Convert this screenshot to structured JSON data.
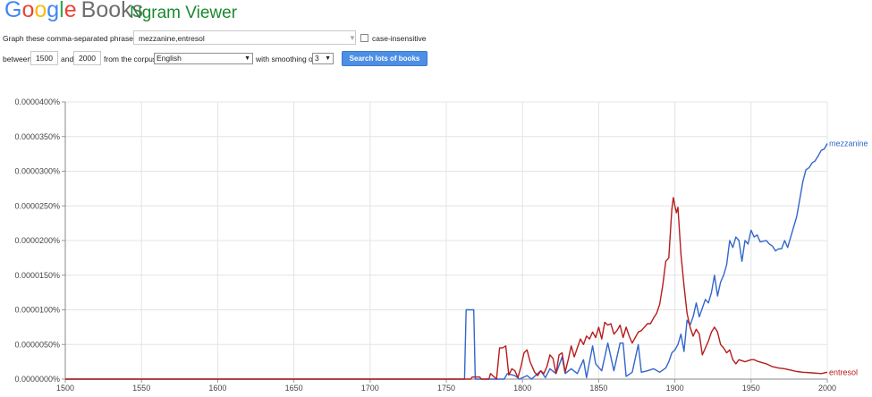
{
  "logo": {
    "letters": [
      "G",
      "o",
      "o",
      "g",
      "l",
      "e"
    ],
    "letter_colors": [
      "#4285f4",
      "#ea4335",
      "#fbbc05",
      "#4285f4",
      "#34a853",
      "#ea4335"
    ],
    "books": "Books"
  },
  "app_title": "Ngram Viewer",
  "form": {
    "phrases_label": "Graph these comma-separated phrases:",
    "phrases_value": "mezzanine,entresol",
    "case_insensitive_label": "case-insensitive",
    "between_label": "between",
    "year_start": "1500",
    "and_label": "and",
    "year_end": "2000",
    "corpus_label": "from the corpus",
    "corpus_value": "English",
    "smoothing_label": "with smoothing of",
    "smoothing_value": "3",
    "search_button": "Search lots of books"
  },
  "chart_data": {
    "type": "line",
    "xlim": [
      1500,
      2000
    ],
    "ylim": [
      0,
      4e-07
    ],
    "x_ticks": [
      "1500",
      "1550",
      "1600",
      "1650",
      "1700",
      "1750",
      "1800",
      "1850",
      "1900",
      "1950",
      "2000"
    ],
    "y_ticks": [
      "0.0000000%",
      "0.0000050%",
      "0.0000100%",
      "0.0000150%",
      "0.0000200%",
      "0.0000250%",
      "0.0000300%",
      "0.0000350%",
      "0.0000400%"
    ],
    "grid": true,
    "series": [
      {
        "name": "mezzanine",
        "color": "#3366cc",
        "points": [
          [
            1500,
            0
          ],
          [
            1762,
            0
          ],
          [
            1763,
            1e-07
          ],
          [
            1768,
            1e-07
          ],
          [
            1769,
            0
          ],
          [
            1788,
            0
          ],
          [
            1790,
            8e-09
          ],
          [
            1795,
            5e-09
          ],
          [
            1798,
            0
          ],
          [
            1803,
            5e-09
          ],
          [
            1806,
            0
          ],
          [
            1812,
            1.2e-08
          ],
          [
            1815,
            2e-09
          ],
          [
            1818,
            1.5e-08
          ],
          [
            1822,
            8e-09
          ],
          [
            1826,
            3.2e-08
          ],
          [
            1828,
            8e-09
          ],
          [
            1832,
            1.5e-08
          ],
          [
            1836,
            8e-09
          ],
          [
            1840,
            2.8e-08
          ],
          [
            1842,
            2e-09
          ],
          [
            1846,
            4.8e-08
          ],
          [
            1848,
            2.2e-08
          ],
          [
            1852,
            1.2e-08
          ],
          [
            1856,
            5.2e-08
          ],
          [
            1860,
            1.2e-08
          ],
          [
            1864,
            5.2e-08
          ],
          [
            1866,
            5.2e-08
          ],
          [
            1868,
            4e-09
          ],
          [
            1872,
            1e-08
          ],
          [
            1876,
            5e-08
          ],
          [
            1878,
            1e-08
          ],
          [
            1882,
            1.2e-08
          ],
          [
            1886,
            1.5e-08
          ],
          [
            1890,
            1e-08
          ],
          [
            1894,
            1.6e-08
          ],
          [
            1896,
            2.5e-08
          ],
          [
            1898,
            3.8e-08
          ],
          [
            1900,
            4.2e-08
          ],
          [
            1902,
            5e-08
          ],
          [
            1904,
            6.5e-08
          ],
          [
            1906,
            4e-08
          ],
          [
            1908,
            8.5e-08
          ],
          [
            1910,
            7.8e-08
          ],
          [
            1912,
            9e-08
          ],
          [
            1914,
            1.1e-07
          ],
          [
            1916,
            9e-08
          ],
          [
            1920,
            1.15e-07
          ],
          [
            1922,
            1.1e-07
          ],
          [
            1924,
            1.25e-07
          ],
          [
            1926,
            1.5e-07
          ],
          [
            1928,
            1.2e-07
          ],
          [
            1930,
            1.4e-07
          ],
          [
            1932,
            1.5e-07
          ],
          [
            1934,
            1.65e-07
          ],
          [
            1936,
            2e-07
          ],
          [
            1938,
            1.9e-07
          ],
          [
            1940,
            2.05e-07
          ],
          [
            1942,
            2e-07
          ],
          [
            1944,
            1.7e-07
          ],
          [
            1946,
            2e-07
          ],
          [
            1948,
            1.95e-07
          ],
          [
            1950,
            2.15e-07
          ],
          [
            1952,
            2.05e-07
          ],
          [
            1954,
            2.08e-07
          ],
          [
            1956,
            1.98e-07
          ],
          [
            1960,
            2e-07
          ],
          [
            1962,
            1.95e-07
          ],
          [
            1964,
            1.92e-07
          ],
          [
            1966,
            1.85e-07
          ],
          [
            1968,
            1.88e-07
          ],
          [
            1970,
            1.88e-07
          ],
          [
            1972,
            2e-07
          ],
          [
            1974,
            1.9e-07
          ],
          [
            1976,
            2.05e-07
          ],
          [
            1978,
            2.2e-07
          ],
          [
            1980,
            2.35e-07
          ],
          [
            1982,
            2.6e-07
          ],
          [
            1984,
            2.85e-07
          ],
          [
            1986,
            3.02e-07
          ],
          [
            1988,
            3.05e-07
          ],
          [
            1990,
            3.12e-07
          ],
          [
            1992,
            3.15e-07
          ],
          [
            1994,
            3.22e-07
          ],
          [
            1996,
            3.3e-07
          ],
          [
            1998,
            3.32e-07
          ],
          [
            2000,
            3.4e-07
          ]
        ]
      },
      {
        "name": "entresol",
        "color": "#b71c1c",
        "points": [
          [
            1500,
            0
          ],
          [
            1766,
            0
          ],
          [
            1767,
            3e-09
          ],
          [
            1772,
            3e-09
          ],
          [
            1773,
            0
          ],
          [
            1778,
            0
          ],
          [
            1779,
            8e-09
          ],
          [
            1781,
            4e-09
          ],
          [
            1783,
            0
          ],
          [
            1785,
            4.5e-08
          ],
          [
            1787,
            4.5e-08
          ],
          [
            1789,
            4.8e-08
          ],
          [
            1791,
            6e-09
          ],
          [
            1793,
            1.5e-08
          ],
          [
            1795,
            1.2e-08
          ],
          [
            1797,
            2e-09
          ],
          [
            1799,
            1.8e-08
          ],
          [
            1801,
            3.8e-08
          ],
          [
            1803,
            4.2e-08
          ],
          [
            1805,
            2.5e-08
          ],
          [
            1808,
            1e-08
          ],
          [
            1810,
            5e-09
          ],
          [
            1812,
            1.2e-08
          ],
          [
            1814,
            8e-09
          ],
          [
            1816,
            1.8e-08
          ],
          [
            1818,
            3.5e-08
          ],
          [
            1820,
            3e-08
          ],
          [
            1822,
            8e-09
          ],
          [
            1824,
            3.5e-08
          ],
          [
            1826,
            3.8e-08
          ],
          [
            1828,
            1e-08
          ],
          [
            1830,
            2.8e-08
          ],
          [
            1832,
            4.8e-08
          ],
          [
            1834,
            3.2e-08
          ],
          [
            1836,
            4.5e-08
          ],
          [
            1838,
            5.8e-08
          ],
          [
            1840,
            5e-08
          ],
          [
            1842,
            6.2e-08
          ],
          [
            1844,
            5.8e-08
          ],
          [
            1846,
            6.8e-08
          ],
          [
            1848,
            6e-08
          ],
          [
            1850,
            7.5e-08
          ],
          [
            1852,
            5.8e-08
          ],
          [
            1854,
            8.2e-08
          ],
          [
            1856,
            7.8e-08
          ],
          [
            1858,
            8e-08
          ],
          [
            1860,
            6.5e-08
          ],
          [
            1862,
            7e-08
          ],
          [
            1864,
            7.8e-08
          ],
          [
            1866,
            6e-08
          ],
          [
            1868,
            7.5e-08
          ],
          [
            1870,
            6.2e-08
          ],
          [
            1872,
            5.2e-08
          ],
          [
            1874,
            6e-08
          ],
          [
            1876,
            6.8e-08
          ],
          [
            1878,
            7e-08
          ],
          [
            1880,
            7.5e-08
          ],
          [
            1882,
            8e-08
          ],
          [
            1884,
            8e-08
          ],
          [
            1886,
            8.8e-08
          ],
          [
            1888,
            9.5e-08
          ],
          [
            1890,
            1.08e-07
          ],
          [
            1892,
            1.35e-07
          ],
          [
            1894,
            1.7e-07
          ],
          [
            1896,
            1.75e-07
          ],
          [
            1898,
            2.45e-07
          ],
          [
            1899,
            2.62e-07
          ],
          [
            1900,
            2.5e-07
          ],
          [
            1901,
            2.4e-07
          ],
          [
            1902,
            2.48e-07
          ],
          [
            1904,
            1.8e-07
          ],
          [
            1906,
            1.35e-07
          ],
          [
            1908,
            9.5e-08
          ],
          [
            1910,
            7.5e-08
          ],
          [
            1912,
            6.2e-08
          ],
          [
            1914,
            7.2e-08
          ],
          [
            1916,
            6.5e-08
          ],
          [
            1918,
            3.5e-08
          ],
          [
            1920,
            4.5e-08
          ],
          [
            1922,
            5.5e-08
          ],
          [
            1924,
            6.8e-08
          ],
          [
            1926,
            7.5e-08
          ],
          [
            1928,
            6.8e-08
          ],
          [
            1930,
            5e-08
          ],
          [
            1932,
            4.5e-08
          ],
          [
            1934,
            3.8e-08
          ],
          [
            1936,
            4.2e-08
          ],
          [
            1938,
            2.8e-08
          ],
          [
            1940,
            2.2e-08
          ],
          [
            1942,
            2.8e-08
          ],
          [
            1946,
            2.5e-08
          ],
          [
            1950,
            2.8e-08
          ],
          [
            1952,
            2.8e-08
          ],
          [
            1954,
            2.6e-08
          ],
          [
            1960,
            2.2e-08
          ],
          [
            1964,
            1.8e-08
          ],
          [
            1968,
            1.6e-08
          ],
          [
            1972,
            1.5e-08
          ],
          [
            1976,
            1.3e-08
          ],
          [
            1980,
            1.1e-08
          ],
          [
            1984,
            1e-08
          ],
          [
            1990,
            9e-09
          ],
          [
            1996,
            8e-09
          ],
          [
            2000,
            1e-08
          ]
        ]
      }
    ]
  }
}
